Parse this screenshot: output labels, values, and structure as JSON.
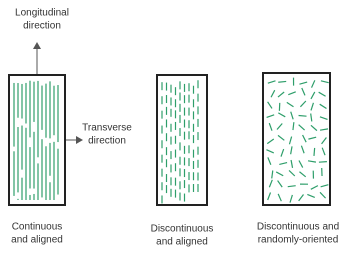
{
  "arrows": {
    "longitudinal": [
      "Longitudinal",
      "direction"
    ],
    "transverse": [
      "Transverse",
      "direction"
    ]
  },
  "captions": [
    [
      "Continuous",
      "and aligned"
    ],
    [
      "Discontinuous",
      "and aligned"
    ],
    [
      "Discontinuous and",
      "randomly-oriented"
    ]
  ]
}
